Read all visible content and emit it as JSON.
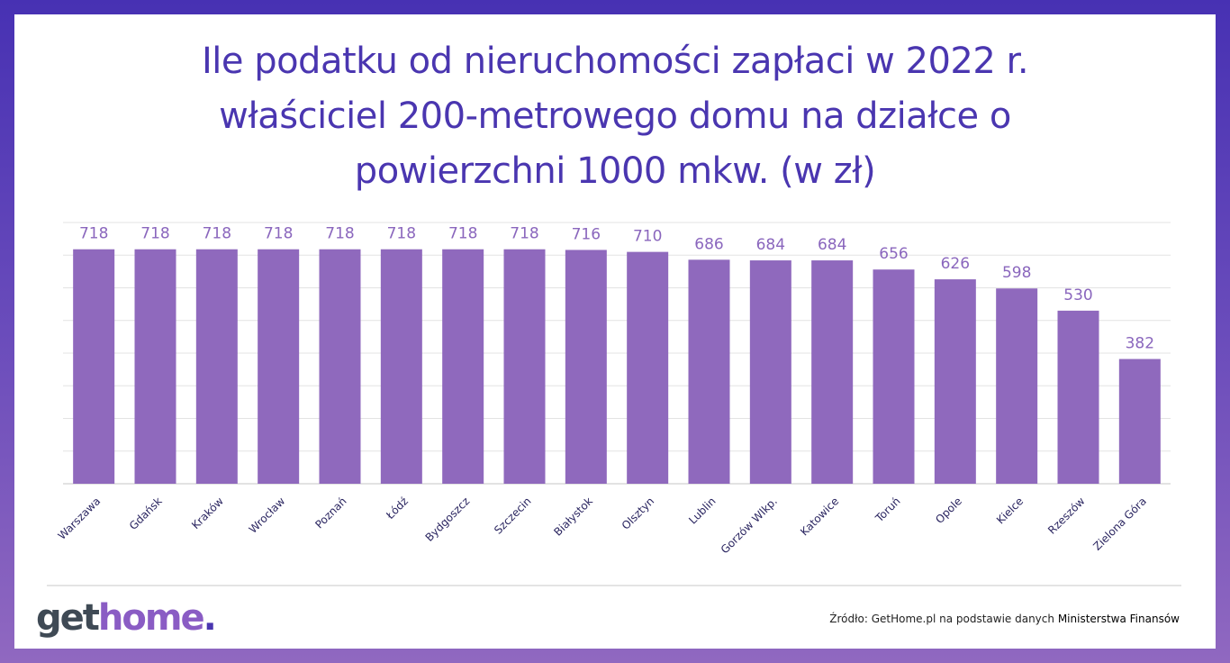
{
  "title_lines": [
    "Ile podatku od nieruchomości zapłaci w 2022 r.",
    "właściciel 200-metrowego domu na działce o",
    "powierzchni 1000 mkw. (w zł)"
  ],
  "chart_data": {
    "type": "bar",
    "title": "Ile podatku od nieruchomości zapłaci w 2022 r. właściciel 200-metrowego domu na działce o powierzchni 1000 mkw. (w zł)",
    "categories": [
      "Warszawa",
      "Gdańsk",
      "Kraków",
      "Wrocław",
      "Poznań",
      "Łódź",
      "Bydgoszcz",
      "Szczecin",
      "Białystok",
      "Olsztyn",
      "Lublin",
      "Gorzów Wlkp.",
      "Katowice",
      "Toruń",
      "Opole",
      "Kielce",
      "Rzeszów",
      "Zielona Góra"
    ],
    "values": [
      718,
      718,
      718,
      718,
      718,
      718,
      718,
      718,
      716,
      710,
      686,
      684,
      684,
      656,
      626,
      598,
      530,
      382
    ],
    "xlabel": "",
    "ylabel": "",
    "ylim": [
      0,
      800
    ],
    "grid": true,
    "gridstep": 100,
    "bar_color": "#8f69bd",
    "label_color": "#8a66bd"
  },
  "logo": {
    "part1": "get",
    "part2": "home",
    "part3": "."
  },
  "source": {
    "prefix": "Źródło: GetHome.pl na podstawie danych ",
    "emphasis": "Ministerstwa Finansów"
  }
}
